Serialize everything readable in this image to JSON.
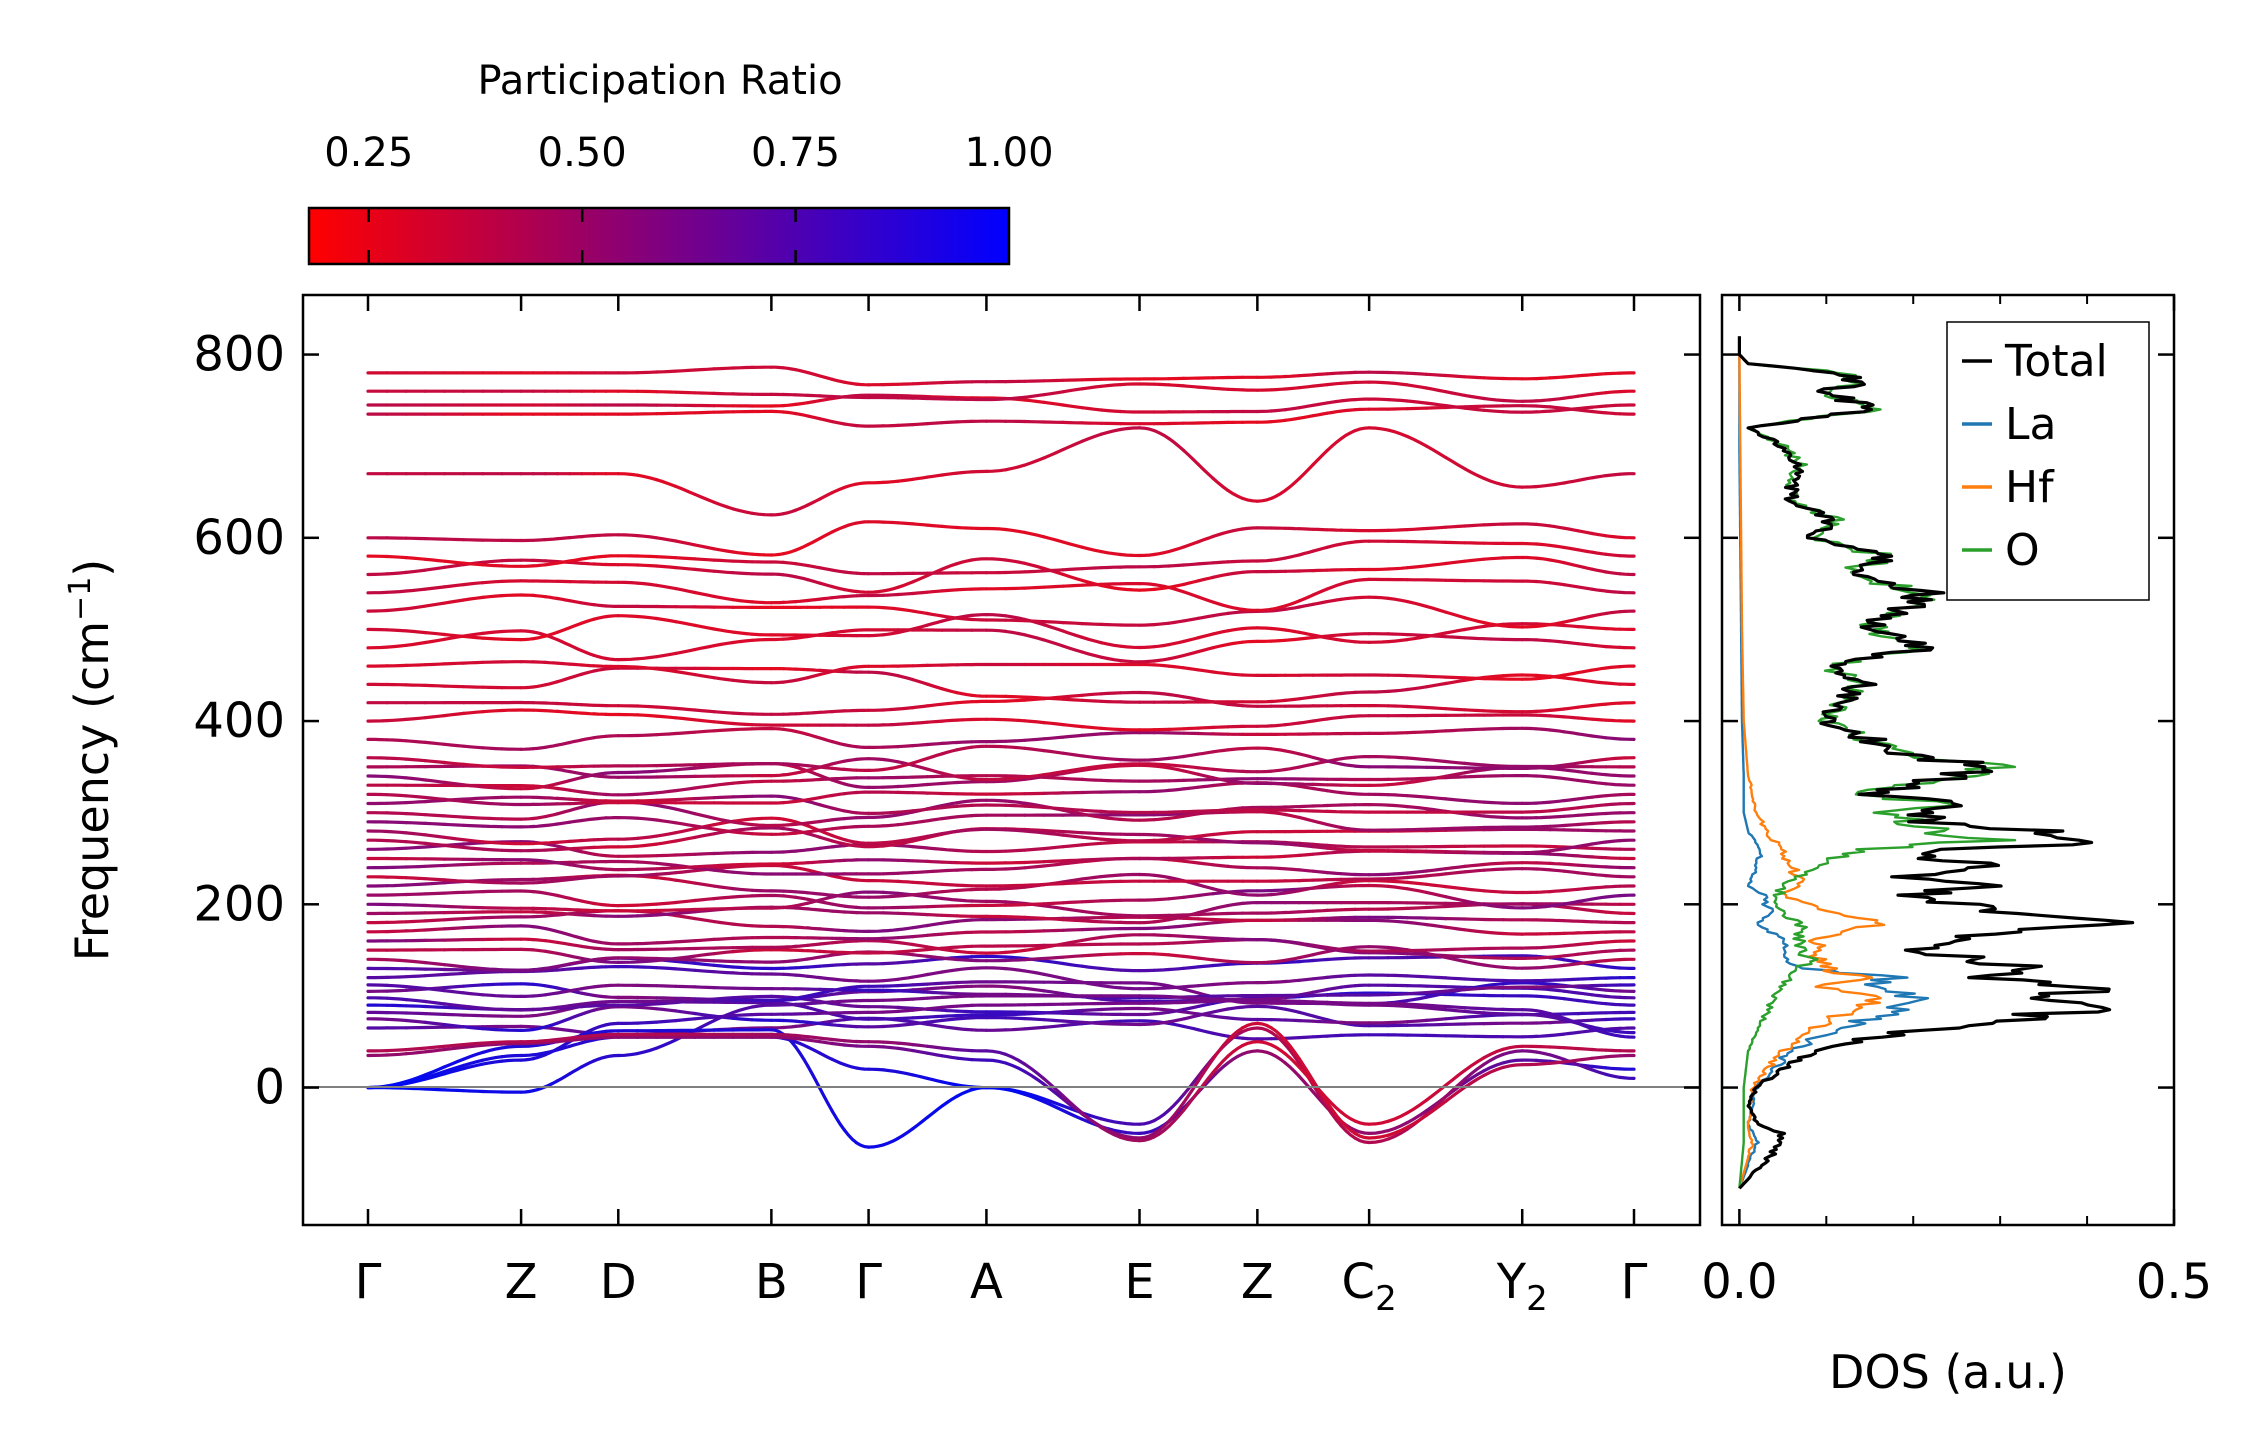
{
  "colors": {
    "cbar_low": "#ff0000",
    "cbar_high": "#0000ff",
    "zero_line": "#808080",
    "total": "#000000",
    "la": "#1f77b4",
    "hf": "#ff7f0e",
    "o": "#2ca02c"
  },
  "chart_data": [
    {
      "type": "line",
      "name": "phonon-dispersion",
      "ylabel_main": "Frequency (cm",
      "ylabel_sup": "−1",
      "ylabel_end": ")",
      "ylim": [
        -150,
        865
      ],
      "yticks": [
        0,
        200,
        400,
        600,
        800
      ],
      "ytick_labels": [
        "0",
        "200",
        "400",
        "600",
        "800"
      ],
      "xlim": [
        -0.5,
        10.0
      ],
      "kpoint_positions": [
        0,
        1.26,
        2.06,
        3.32,
        4.12,
        5.09,
        6.35,
        7.32,
        8.24,
        9.5,
        10.42
      ],
      "kpoint_labels": [
        {
          "main": "Γ",
          "sub": ""
        },
        {
          "main": "Z",
          "sub": ""
        },
        {
          "main": "D",
          "sub": ""
        },
        {
          "main": "B",
          "sub": ""
        },
        {
          "main": "Γ",
          "sub": ""
        },
        {
          "main": "A",
          "sub": ""
        },
        {
          "main": "E",
          "sub": ""
        },
        {
          "main": "Z",
          "sub": ""
        },
        {
          "main": "C",
          "sub": "2"
        },
        {
          "main": "Y",
          "sub": "2"
        },
        {
          "main": "Γ",
          "sub": ""
        }
      ],
      "colorbar": {
        "title": "Participation Ratio",
        "range": [
          0.18,
          1.0
        ],
        "ticks": [
          0.25,
          0.5,
          0.75,
          1.0
        ],
        "tick_labels": [
          "0.25",
          "0.50",
          "0.75",
          "1.00"
        ]
      },
      "acoustic_and_soft_bands": [
        {
          "freq": [
            0,
            -5,
            35,
            90,
            95,
            100,
            100,
            95,
            90,
            80,
            60,
            0
          ],
          "pr": [
            1.0,
            0.95,
            0.85,
            0.7,
            0.6,
            0.6,
            0.6,
            0.6,
            0.6,
            0.7,
            0.8,
            1.0
          ]
        },
        {
          "freq": [
            0,
            30,
            70,
            80,
            82,
            90,
            92,
            95,
            92,
            85,
            55,
            0
          ],
          "pr": [
            1.0,
            0.9,
            0.8,
            0.7,
            0.6,
            0.6,
            0.6,
            0.6,
            0.6,
            0.7,
            0.8,
            1.0
          ]
        },
        {
          "freq": [
            0,
            45,
            62,
            63,
            -65,
            0,
            -50,
            40,
            -50,
            30,
            20,
            0
          ],
          "pr": [
            1.0,
            0.9,
            0.9,
            0.9,
            0.95,
            1.0,
            0.8,
            0.5,
            0.5,
            0.7,
            0.9,
            1.0
          ]
        },
        {
          "freq": [
            0,
            35,
            55,
            55,
            20,
            0,
            -40,
            65,
            -60,
            40,
            10,
            0
          ],
          "pr": [
            1.0,
            0.9,
            0.85,
            0.85,
            0.9,
            1.0,
            0.75,
            0.4,
            0.4,
            0.6,
            0.8,
            1.0
          ]
        },
        {
          "freq": [
            35,
            48,
            55,
            55,
            45,
            30,
            -55,
            70,
            -55,
            25,
            35,
            35
          ],
          "pr": [
            0.5,
            0.5,
            0.5,
            0.5,
            0.6,
            0.8,
            0.5,
            0.3,
            0.3,
            0.4,
            0.5,
            0.5
          ]
        },
        {
          "freq": [
            40,
            50,
            58,
            58,
            50,
            40,
            -58,
            50,
            -40,
            45,
            40,
            40
          ],
          "pr": [
            0.4,
            0.4,
            0.4,
            0.45,
            0.5,
            0.7,
            0.45,
            0.3,
            0.3,
            0.35,
            0.4,
            0.4
          ]
        }
      ],
      "optical_band_frequencies_at_gamma": [
        65,
        75,
        82,
        90,
        98,
        105,
        112,
        120,
        130,
        140,
        150,
        160,
        170,
        180,
        190,
        200,
        210,
        220,
        230,
        240,
        250,
        260,
        270,
        280,
        290,
        300,
        310,
        320,
        330,
        340,
        350,
        360,
        380,
        400,
        420,
        440,
        460,
        480,
        500,
        520,
        540,
        560,
        580,
        600,
        670,
        735,
        745,
        760,
        780
      ],
      "upper_band_shape": {
        "z_point_merge": [
          670,
          710,
          735,
          745,
          760,
          780
        ],
        "c2_merge": 720
      }
    },
    {
      "type": "line",
      "name": "dos",
      "xlabel": "DOS (a.u.)",
      "xlim": [
        -0.02,
        0.5
      ],
      "xticks": [
        0.0,
        0.5
      ],
      "xtick_labels": [
        "0.0",
        "0.5"
      ],
      "ylim": [
        -150,
        865
      ],
      "legend_position": "top-right",
      "series": [
        {
          "name": "Total",
          "key": "total",
          "freq": [
            -110,
            -70,
            -50,
            -40,
            -20,
            0,
            20,
            40,
            60,
            70,
            80,
            90,
            100,
            110,
            120,
            130,
            140,
            150,
            160,
            170,
            180,
            190,
            200,
            210,
            220,
            230,
            240,
            250,
            260,
            270,
            280,
            290,
            300,
            310,
            320,
            330,
            340,
            350,
            360,
            380,
            400,
            420,
            440,
            460,
            480,
            500,
            520,
            540,
            560,
            580,
            600,
            620,
            640,
            660,
            680,
            700,
            720,
            740,
            760,
            770,
            780,
            790,
            800,
            820
          ],
          "values": [
            0.0,
            0.04,
            0.05,
            0.02,
            0.01,
            0.02,
            0.05,
            0.09,
            0.18,
            0.3,
            0.35,
            0.43,
            0.36,
            0.42,
            0.3,
            0.35,
            0.27,
            0.2,
            0.25,
            0.3,
            0.42,
            0.3,
            0.26,
            0.2,
            0.28,
            0.2,
            0.3,
            0.22,
            0.25,
            0.44,
            0.35,
            0.22,
            0.2,
            0.28,
            0.15,
            0.2,
            0.25,
            0.3,
            0.2,
            0.15,
            0.1,
            0.12,
            0.14,
            0.1,
            0.22,
            0.15,
            0.18,
            0.22,
            0.12,
            0.17,
            0.08,
            0.11,
            0.06,
            0.06,
            0.07,
            0.05,
            0.01,
            0.15,
            0.1,
            0.14,
            0.12,
            0.01,
            0.0,
            0.0
          ]
        },
        {
          "name": "La",
          "key": "la",
          "freq": [
            -110,
            -60,
            -40,
            0,
            40,
            60,
            80,
            100,
            110,
            120,
            130,
            140,
            160,
            180,
            190,
            200,
            210,
            220,
            240,
            260,
            280,
            300,
            340,
            400,
            500,
            600,
            700,
            800
          ],
          "values": [
            0.0,
            0.02,
            0.01,
            0.02,
            0.06,
            0.1,
            0.17,
            0.2,
            0.15,
            0.18,
            0.08,
            0.05,
            0.05,
            0.02,
            0.04,
            0.03,
            0.03,
            0.01,
            0.02,
            0.025,
            0.01,
            0.005,
            0.005,
            0.003,
            0.002,
            0.001,
            0.0,
            0.0
          ]
        },
        {
          "name": "Hf",
          "key": "hf",
          "freq": [
            -110,
            -60,
            -40,
            0,
            40,
            60,
            80,
            100,
            110,
            120,
            130,
            140,
            160,
            180,
            190,
            200,
            210,
            220,
            240,
            260,
            280,
            300,
            340,
            400,
            500,
            600,
            700,
            800
          ],
          "values": [
            0.0,
            0.015,
            0.01,
            0.015,
            0.05,
            0.08,
            0.12,
            0.16,
            0.1,
            0.14,
            0.1,
            0.09,
            0.09,
            0.16,
            0.12,
            0.08,
            0.05,
            0.07,
            0.06,
            0.05,
            0.03,
            0.02,
            0.01,
            0.005,
            0.003,
            0.002,
            0.001,
            0.0
          ]
        },
        {
          "name": "O",
          "key": "o",
          "freq": [
            -110,
            -60,
            -40,
            0,
            40,
            60,
            80,
            100,
            120,
            140,
            160,
            180,
            190,
            200,
            220,
            240,
            260,
            270,
            280,
            290,
            300,
            310,
            320,
            330,
            340,
            350,
            360,
            380,
            400,
            420,
            440,
            460,
            480,
            500,
            520,
            540,
            560,
            580,
            600,
            620,
            640,
            660,
            680,
            700,
            720,
            740,
            760,
            770,
            780,
            790,
            800,
            820
          ],
          "values": [
            0.0,
            0.005,
            0.005,
            0.005,
            0.01,
            0.02,
            0.03,
            0.04,
            0.06,
            0.08,
            0.07,
            0.07,
            0.05,
            0.04,
            0.05,
            0.09,
            0.14,
            0.3,
            0.22,
            0.2,
            0.16,
            0.24,
            0.12,
            0.2,
            0.25,
            0.3,
            0.2,
            0.15,
            0.1,
            0.12,
            0.14,
            0.1,
            0.22,
            0.15,
            0.18,
            0.22,
            0.12,
            0.17,
            0.08,
            0.11,
            0.06,
            0.06,
            0.07,
            0.05,
            0.01,
            0.15,
            0.1,
            0.14,
            0.12,
            0.01,
            0.0,
            0.0
          ]
        }
      ]
    }
  ]
}
